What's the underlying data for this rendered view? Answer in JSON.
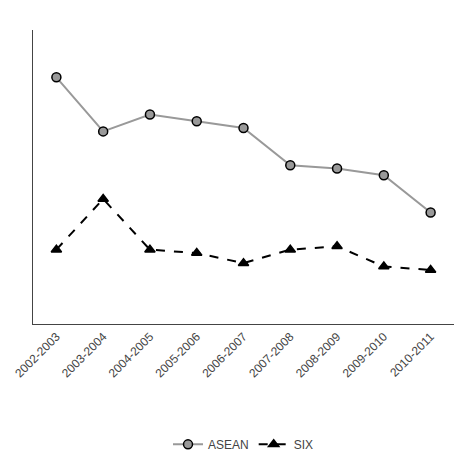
{
  "chart_data": {
    "type": "line",
    "categories": [
      "2002-2003",
      "2003-2004",
      "2004-2005",
      "2005-2006",
      "2006-2007",
      "2007-2008",
      "2008-2009",
      "2009-2010",
      "2010-2011"
    ],
    "series": [
      {
        "name": "ASEAN",
        "color": "#999999",
        "marker": "circle",
        "line_style": "solid",
        "values": [
          0.78,
          0.62,
          0.67,
          0.65,
          0.63,
          0.52,
          0.51,
          0.49,
          0.38
        ]
      },
      {
        "name": "SIX",
        "color": "#000000",
        "marker": "triangle-up",
        "line_style": "dash",
        "values": [
          0.27,
          0.42,
          0.27,
          0.26,
          0.23,
          0.27,
          0.28,
          0.22,
          0.21
        ]
      }
    ],
    "ylim": [
      0.05,
      0.92
    ],
    "yticks": [],
    "grid": false,
    "tick_labels": "x",
    "legend": "bottom"
  }
}
